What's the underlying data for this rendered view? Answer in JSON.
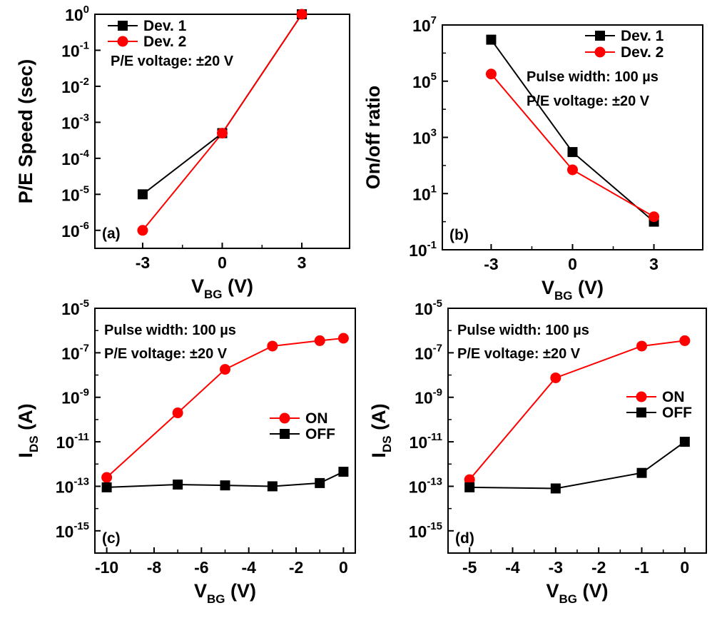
{
  "chart_data": [
    {
      "type": "line",
      "panel_label": "(a)",
      "ylabel": "P/E Speed (sec)",
      "xlabel_main": "V",
      "xlabel_sub": "BG",
      "xlabel_unit": "(V)",
      "yscale": "log",
      "xlim": [
        -4.8,
        4.8
      ],
      "ylim_exp": [
        -6.5,
        0
      ],
      "xticks": [
        -3,
        0,
        3
      ],
      "xtick_labels": [
        "-3",
        "0",
        "3"
      ],
      "yticks_exp": [
        -6,
        -5,
        -4,
        -3,
        -2,
        -1,
        0
      ],
      "annotation": "P/E voltage: ±20 V",
      "legend_position": "top-left",
      "series": [
        {
          "name": "Dev. 1",
          "marker": "square",
          "color": "#000000",
          "x": [
            -3,
            0,
            3
          ],
          "y": [
            1e-05,
            0.0005,
            1
          ]
        },
        {
          "name": "Dev. 2",
          "marker": "circle",
          "color": "#ff0000",
          "x": [
            -3,
            0,
            3
          ],
          "y": [
            1e-06,
            0.0005,
            1
          ]
        }
      ]
    },
    {
      "type": "line",
      "panel_label": "(b)",
      "ylabel": "On/off ratio",
      "xlabel_main": "V",
      "xlabel_sub": "BG",
      "xlabel_unit": "(V)",
      "yscale": "log",
      "xlim": [
        -4.8,
        4.8
      ],
      "ylim_exp": [
        -1,
        7
      ],
      "xticks": [
        -3,
        0,
        3
      ],
      "xtick_labels": [
        "-3",
        "0",
        "3"
      ],
      "yticks_exp": [
        -1,
        1,
        3,
        5,
        7
      ],
      "annotations": [
        "Pulse width: 100 µs",
        "P/E voltage: ±20 V"
      ],
      "legend_position": "top-right",
      "series": [
        {
          "name": "Dev. 1",
          "marker": "square",
          "color": "#000000",
          "x": [
            -3,
            0,
            3
          ],
          "y": [
            3000000.0,
            300,
            1
          ]
        },
        {
          "name": "Dev. 2",
          "marker": "circle",
          "color": "#ff0000",
          "x": [
            -3,
            0,
            3
          ],
          "y": [
            180000.0,
            70,
            1.5
          ]
        }
      ]
    },
    {
      "type": "line",
      "panel_label": "(c)",
      "ylabel_main": "I",
      "ylabel_sub": "DS",
      "ylabel_unit": "(A)",
      "xlabel_main": "V",
      "xlabel_sub": "BG",
      "xlabel_unit": "(V)",
      "yscale": "log",
      "xlim": [
        -10.5,
        0.5
      ],
      "ylim_exp": [
        -16,
        -5
      ],
      "xticks": [
        -10,
        -8,
        -6,
        -4,
        -2,
        0
      ],
      "xtick_labels": [
        "-10",
        "-8",
        "-6",
        "-4",
        "-2",
        "0"
      ],
      "yticks_exp": [
        -15,
        -13,
        -11,
        -9,
        -7,
        -5
      ],
      "annotations": [
        "Pulse width: 100 µs",
        "P/E voltage: ±20 V"
      ],
      "legend_position": "center-right",
      "series": [
        {
          "name": "ON",
          "marker": "circle",
          "color": "#ff0000",
          "x": [
            -10,
            -7,
            -5,
            -3,
            -1,
            0
          ],
          "y": [
            2.5e-13,
            2e-10,
            1.8e-08,
            2e-07,
            3.5e-07,
            4.5e-07
          ]
        },
        {
          "name": "OFF",
          "marker": "square",
          "color": "#000000",
          "x": [
            -10,
            -7,
            -5,
            -3,
            -1,
            0
          ],
          "y": [
            9e-14,
            1.2e-13,
            1.1e-13,
            1e-13,
            1.4e-13,
            4.5e-13
          ]
        }
      ]
    },
    {
      "type": "line",
      "panel_label": "(d)",
      "ylabel_main": "I",
      "ylabel_sub": "DS",
      "ylabel_unit": "(A)",
      "xlabel_main": "V",
      "xlabel_sub": "BG",
      "xlabel_unit": "(V)",
      "yscale": "log",
      "xlim": [
        -5.5,
        0.5
      ],
      "ylim_exp": [
        -16,
        -5
      ],
      "xticks": [
        -5,
        -4,
        -3,
        -2,
        -1,
        0
      ],
      "xtick_labels": [
        "-5",
        "-4",
        "-3",
        "-2",
        "-1",
        "0"
      ],
      "yticks_exp": [
        -15,
        -13,
        -11,
        -9,
        -7,
        -5
      ],
      "annotations": [
        "Pulse width: 100 µs",
        "P/E voltage: ±20 V"
      ],
      "legend_position": "center-right",
      "series": [
        {
          "name": "ON",
          "marker": "circle",
          "color": "#ff0000",
          "x": [
            -5,
            -3,
            -1,
            0
          ],
          "y": [
            2e-13,
            7.5e-09,
            2e-07,
            3.5e-07
          ]
        },
        {
          "name": "OFF",
          "marker": "square",
          "color": "#000000",
          "x": [
            -5,
            -3,
            -1,
            0
          ],
          "y": [
            9e-14,
            8e-14,
            4e-13,
            1e-11
          ]
        }
      ]
    }
  ]
}
